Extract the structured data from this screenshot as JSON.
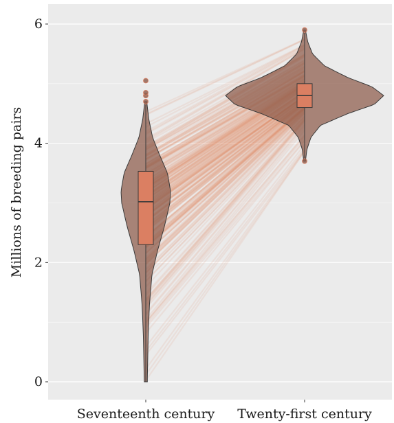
{
  "chart_data": {
    "type": "violin",
    "title": "",
    "xlabel": "",
    "ylabel": "Millions of breeding pairs",
    "categories": [
      "Seventeenth century",
      "Twenty-first century"
    ],
    "ylim": [
      -0.25,
      6.15
    ],
    "yticks": [
      0,
      2,
      4,
      6
    ],
    "ytick_labels": [
      "0",
      "2",
      "4",
      "6"
    ],
    "grid": true,
    "legend": "none",
    "colors": {
      "panel": "#ebebeb",
      "gridline": "#ffffff",
      "violin_fill": "#8c5a4a",
      "box_fill": "#db7f62",
      "lines": "#e08a64",
      "outline": "#3a3a3a"
    },
    "series": [
      {
        "category": "Seventeenth century",
        "violin_range": [
          0.0,
          4.7
        ],
        "box": {
          "q1": 2.3,
          "median": 3.02,
          "q3": 3.53,
          "whisker_low": 0.0,
          "whisker_high": 4.65
        },
        "outliers": [
          4.7,
          4.8,
          4.85,
          5.05
        ],
        "density_profile": [
          [
            0.0,
            0.05
          ],
          [
            0.3,
            0.06
          ],
          [
            0.8,
            0.08
          ],
          [
            1.3,
            0.12
          ],
          [
            1.8,
            0.2
          ],
          [
            2.2,
            0.38
          ],
          [
            2.6,
            0.6
          ],
          [
            3.0,
            0.78
          ],
          [
            3.2,
            0.8
          ],
          [
            3.5,
            0.7
          ],
          [
            3.8,
            0.45
          ],
          [
            4.1,
            0.22
          ],
          [
            4.4,
            0.1
          ],
          [
            4.7,
            0.03
          ]
        ]
      },
      {
        "category": "Twenty-first century",
        "violin_range": [
          3.7,
          5.9
        ],
        "box": {
          "q1": 4.6,
          "median": 4.8,
          "q3": 5.0,
          "whisker_low": 3.75,
          "whisker_high": 5.85
        },
        "outliers": [
          3.7,
          5.9
        ],
        "density_profile": [
          [
            3.7,
            0.01
          ],
          [
            3.9,
            0.03
          ],
          [
            4.1,
            0.08
          ],
          [
            4.3,
            0.2
          ],
          [
            4.5,
            0.55
          ],
          [
            4.65,
            0.88
          ],
          [
            4.8,
            1.0
          ],
          [
            4.95,
            0.85
          ],
          [
            5.1,
            0.55
          ],
          [
            5.3,
            0.25
          ],
          [
            5.5,
            0.1
          ],
          [
            5.7,
            0.04
          ],
          [
            5.9,
            0.01
          ]
        ]
      }
    ]
  }
}
